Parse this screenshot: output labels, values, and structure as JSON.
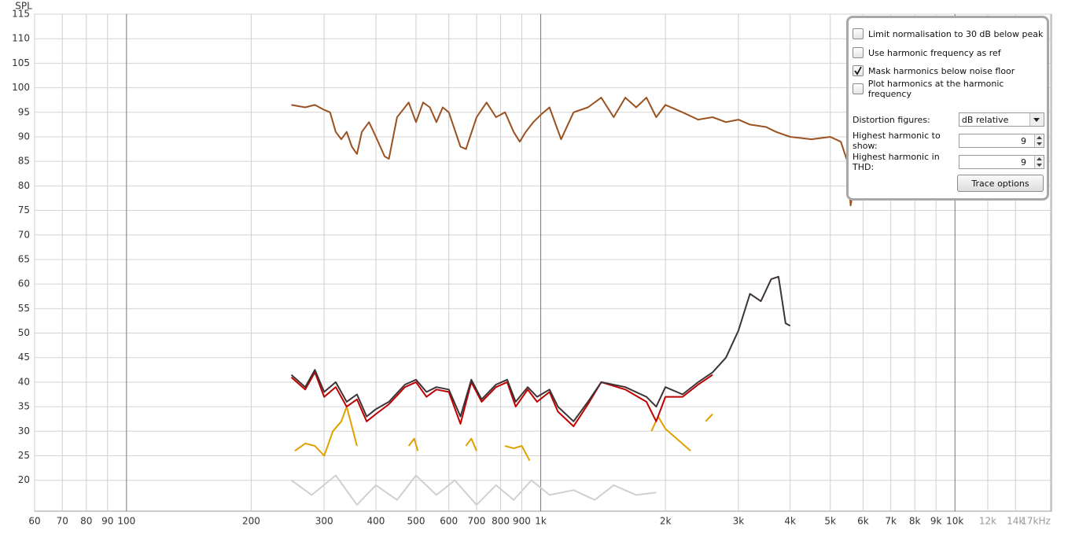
{
  "chart_data": {
    "type": "line",
    "y_label": "SPL",
    "log_x": true,
    "grid": true,
    "xlim": [
      60,
      17100
    ],
    "ylim": [
      13.7,
      115
    ],
    "xticks": [
      60,
      70,
      80,
      90,
      100,
      200,
      300,
      400,
      500,
      600,
      700,
      800,
      900,
      {
        "value": 1000,
        "label": "1k"
      },
      {
        "value": 2000,
        "label": "2k"
      },
      {
        "value": 3000,
        "label": "3k"
      },
      {
        "value": 4000,
        "label": "4k"
      },
      {
        "value": 5000,
        "label": "5k"
      },
      {
        "value": 6000,
        "label": "6k"
      },
      {
        "value": 7000,
        "label": "7k"
      },
      {
        "value": 8000,
        "label": "8k"
      },
      {
        "value": 9000,
        "label": "9k"
      },
      {
        "value": 10000,
        "label": "10k"
      },
      {
        "value": 12000,
        "label": "12k"
      },
      {
        "value": 14000,
        "label": "14k"
      },
      {
        "value": 17000,
        "label": "17kHz"
      }
    ],
    "yticks": [
      20,
      25,
      30,
      35,
      40,
      45,
      50,
      55,
      60,
      65,
      70,
      75,
      80,
      85,
      90,
      95,
      100,
      105,
      110,
      115
    ],
    "series": [
      {
        "color": "#d0d0d0",
        "x": [
          250,
          280,
          320,
          360,
          400,
          450,
          500,
          560,
          620,
          700,
          780,
          860,
          950,
          1050,
          1200,
          1350,
          1500,
          1700,
          1900
        ],
        "values": [
          20,
          17,
          21,
          15,
          19,
          16,
          21,
          17,
          20,
          15,
          19,
          16,
          20,
          17,
          18,
          16,
          19,
          17,
          17.5
        ]
      },
      {
        "color": "#e0a000",
        "x": [
          255,
          270,
          285,
          300,
          315,
          330,
          340,
          350,
          360,
          465,
          480,
          495,
          505,
          640,
          660,
          680,
          700,
          780,
          820,
          860,
          900,
          940,
          1750,
          1850,
          1920,
          2000,
          2300,
          2400,
          2500,
          2600
        ],
        "values": [
          26,
          27.5,
          27,
          25,
          30,
          32,
          35,
          31,
          27,
          null,
          27,
          28.5,
          26,
          null,
          27,
          28.5,
          26,
          null,
          27,
          26.5,
          27,
          24,
          null,
          30,
          33,
          30.5,
          26,
          null,
          32,
          33.5
        ]
      },
      {
        "color": "#c00000",
        "x": [
          250,
          270,
          285,
          300,
          320,
          340,
          360,
          380,
          400,
          430,
          470,
          500,
          530,
          560,
          600,
          640,
          680,
          720,
          780,
          830,
          870,
          930,
          980,
          1050,
          1100,
          1200,
          1300,
          1400,
          1600,
          1800,
          1900,
          2000,
          2200,
          2400,
          2600
        ],
        "values": [
          41,
          38.5,
          42,
          37,
          39,
          35,
          36.5,
          32,
          33.5,
          35.5,
          39,
          40,
          37,
          38.5,
          38,
          31.5,
          40,
          36,
          39,
          40,
          35,
          38.5,
          36,
          38,
          34,
          31,
          35.5,
          40,
          38.5,
          36,
          32,
          37,
          37,
          39.5,
          41.5
        ]
      },
      {
        "color": "#3c3436",
        "x": [
          250,
          270,
          285,
          300,
          320,
          340,
          360,
          380,
          400,
          430,
          470,
          500,
          530,
          560,
          600,
          640,
          680,
          720,
          780,
          830,
          870,
          930,
          980,
          1050,
          1100,
          1200,
          1300,
          1400,
          1600,
          1800,
          1900,
          2000,
          2200,
          2400,
          2600,
          2800,
          3000,
          3200,
          3400,
          3600,
          3750,
          3900,
          4000
        ],
        "values": [
          41.5,
          39,
          42.5,
          38,
          40,
          36,
          37.5,
          33,
          34.5,
          36,
          39.5,
          40.5,
          38,
          39,
          38.5,
          33,
          40.5,
          36.5,
          39.5,
          40.5,
          36,
          39,
          37,
          38.5,
          35,
          32,
          36,
          40,
          39,
          37,
          35,
          39,
          37.5,
          40,
          42,
          45,
          50.5,
          58,
          56.5,
          61,
          61.5,
          52,
          51.5
        ]
      },
      {
        "color": "#9a5220",
        "x": [
          250,
          270,
          285,
          300,
          310,
          320,
          330,
          340,
          350,
          360,
          370,
          385,
          400,
          420,
          430,
          450,
          480,
          500,
          520,
          540,
          560,
          580,
          600,
          640,
          660,
          700,
          740,
          780,
          820,
          860,
          890,
          920,
          960,
          1000,
          1050,
          1120,
          1200,
          1300,
          1400,
          1500,
          1600,
          1700,
          1800,
          1900,
          2000,
          2200,
          2400,
          2600,
          2800,
          3000,
          3200,
          3500,
          3700,
          4000,
          4500,
          5000,
          5300,
          5500,
          5600,
          5700
        ],
        "values": [
          96.5,
          96,
          96.5,
          95.5,
          95,
          91,
          89.5,
          91,
          88,
          86.5,
          91,
          93,
          90,
          86,
          85.5,
          94,
          97,
          93,
          97,
          96,
          93,
          96,
          95,
          88,
          87.5,
          94,
          97,
          94,
          95,
          91,
          89,
          91,
          93,
          94.5,
          96,
          89.5,
          95,
          96,
          98,
          94,
          98,
          96,
          98,
          94,
          96.5,
          95,
          93.5,
          94,
          93,
          93.5,
          92.5,
          92,
          91,
          90,
          89.5,
          90,
          89,
          85,
          76,
          80
        ]
      }
    ]
  },
  "controls": {
    "options": [
      {
        "label": "Limit normalisation to 30 dB below peak",
        "checked": false
      },
      {
        "label": "Use harmonic frequency as ref",
        "checked": false
      },
      {
        "label": "Mask harmonics below noise floor",
        "checked": true
      },
      {
        "label": "Plot harmonics at the harmonic frequency",
        "checked": false
      }
    ],
    "distortion_figures": {
      "label": "Distortion figures:",
      "value": "dB relative"
    },
    "highest_harmonic_show": {
      "label": "Highest harmonic to show:",
      "value": 9
    },
    "highest_harmonic_thd": {
      "label": "Highest harmonic in THD:",
      "value": 9
    },
    "trace_options_button": "Trace options"
  }
}
